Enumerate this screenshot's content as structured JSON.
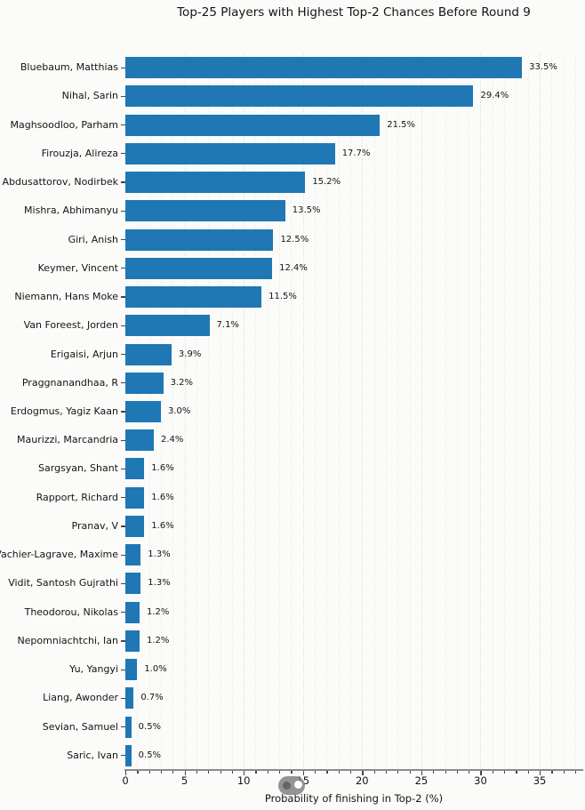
{
  "figure": {
    "background_color": "#fbfbf9"
  },
  "chart_data": {
    "type": "bar",
    "orientation": "horizontal",
    "title": "Top-25 Players with Highest Top-2 Chances Before Round 9",
    "xlabel": "Probability of finishing in Top-2 (%)",
    "ylabel": "",
    "xlim": [
      0,
      38.6
    ],
    "x_major_ticks": [
      0,
      5,
      10,
      15,
      20,
      25,
      30,
      35
    ],
    "minor_tick_step": 1,
    "grid": "vertical dotted gridlines every 1 unit, darker every 5 units",
    "legend": "none",
    "bar_color": "#1f77b4",
    "categories": [
      "Bluebaum, Matthias",
      "Nihal, Sarin",
      "Maghsoodloo, Parham",
      "Firouzja, Alireza",
      "Abdusattorov, Nodirbek",
      "Mishra, Abhimanyu",
      "Giri, Anish",
      "Keymer, Vincent",
      "Niemann, Hans Moke",
      "Van Foreest, Jorden",
      "Erigaisi, Arjun",
      "Praggnanandhaa, R",
      "Erdogmus, Yagiz Kaan",
      "Maurizzi, Marcandria",
      "Sargsyan, Shant",
      "Rapport, Richard",
      "Pranav, V",
      "Vachier-Lagrave, Maxime",
      "Vidit, Santosh Gujrathi",
      "Theodorou, Nikolas",
      "Nepomniachtchi, Ian",
      "Yu, Yangyi",
      "Liang, Awonder",
      "Sevian, Samuel",
      "Saric, Ivan"
    ],
    "values": [
      33.5,
      29.4,
      21.5,
      17.7,
      15.2,
      13.5,
      12.5,
      12.4,
      11.5,
      7.1,
      3.9,
      3.2,
      3.0,
      2.4,
      1.6,
      1.6,
      1.6,
      1.3,
      1.3,
      1.2,
      1.2,
      1.0,
      0.7,
      0.5,
      0.5
    ],
    "value_labels": [
      "33.5%",
      "29.4%",
      "21.5%",
      "17.7%",
      "15.2%",
      "13.5%",
      "12.5%",
      "12.4%",
      "11.5%",
      "7.1%",
      "3.9%",
      "3.2%",
      "3.0%",
      "2.4%",
      "1.6%",
      "1.6%",
      "1.6%",
      "1.3%",
      "1.3%",
      "1.2%",
      "1.2%",
      "1.0%",
      "0.7%",
      "0.5%",
      "0.5%"
    ]
  },
  "overlay": {
    "kind": "cursor-toggle-indicator",
    "pill_color": "rgba(125,125,125,0.82)",
    "dot_left_color": "#656565",
    "dot_right_color": "#ffffff"
  }
}
